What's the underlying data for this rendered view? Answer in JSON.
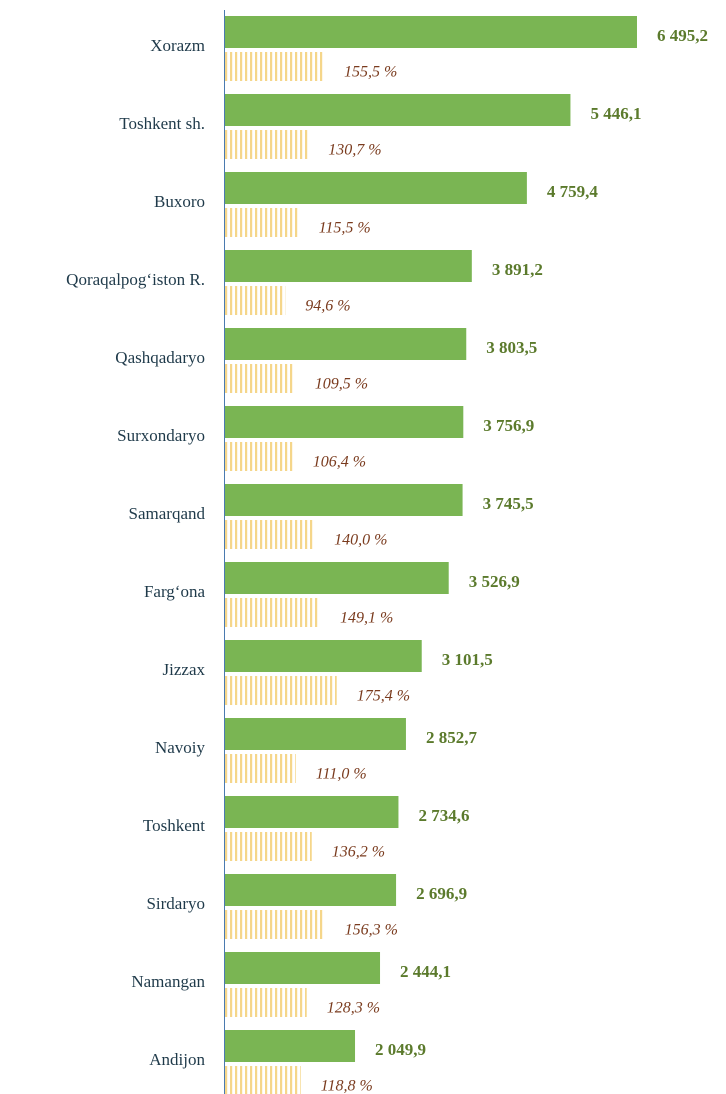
{
  "chart_data": {
    "type": "bar",
    "orientation": "horizontal",
    "categories": [
      "Xorazm",
      "Toshkent sh.",
      "Buxoro",
      "Qoraqalpog‘iston R.",
      "Qashqadaryo",
      "Surxondaryo",
      "Samarqand",
      "Farg‘ona",
      "Jizzax",
      "Navoiy",
      "Toshkent",
      "Sirdaryo",
      "Namangan",
      "Andijon"
    ],
    "series": [
      {
        "color": "#7ab553",
        "label_color": "#5b7a2c",
        "values": [
          6495.2,
          5446.1,
          4759.4,
          3891.2,
          3803.5,
          3756.9,
          3745.5,
          3526.9,
          3101.5,
          2852.7,
          2734.6,
          2696.9,
          2444.1,
          2049.9
        ],
        "value_labels": [
          "6 495,2",
          "5 446,1",
          "4 759,4",
          "3 891,2",
          "3 803,5",
          "3 756,9",
          "3 745,5",
          "3 526,9",
          "3 101,5",
          "2 852,7",
          "2 734,6",
          "2 696,9",
          "2 444,1",
          "2 049,9"
        ]
      },
      {
        "color": "#f5d68a",
        "pattern": "vertical-stripes",
        "label_color": "#7a3b1e",
        "values": [
          155.5,
          130.7,
          115.5,
          94.6,
          109.5,
          106.4,
          140.0,
          149.1,
          175.4,
          111.0,
          136.2,
          156.3,
          128.3,
          118.8
        ],
        "value_labels": [
          "155,5 %",
          "130,7 %",
          "115,5 %",
          "94,6 %",
          "109,5 %",
          "106,4 %",
          "140,0 %",
          "149,1 %",
          "175,4 %",
          "111,0 %",
          "136,2 %",
          "156,3 %",
          "128,3 %",
          "118,8 %"
        ]
      }
    ]
  }
}
